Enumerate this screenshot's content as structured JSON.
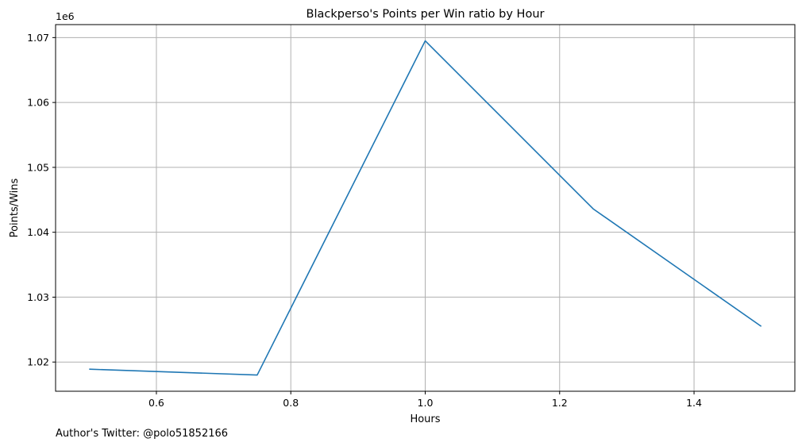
{
  "chart_data": {
    "type": "line",
    "title": "Blackperso's Points per Win ratio by Hour",
    "xlabel": "Hours",
    "ylabel": "Points/Wins",
    "y_offset_label": "1e6",
    "y_scale_factor": 1000000,
    "xlim": [
      0.45,
      1.55
    ],
    "ylim": [
      1.0155,
      1.072
    ],
    "x_ticks": [
      0.6,
      0.8,
      1.0,
      1.2,
      1.4
    ],
    "x_tick_labels": [
      "0.6",
      "0.8",
      "1.0",
      "1.2",
      "1.4"
    ],
    "y_ticks": [
      1.02,
      1.03,
      1.04,
      1.05,
      1.06,
      1.07
    ],
    "y_tick_labels": [
      "1.02",
      "1.03",
      "1.04",
      "1.05",
      "1.06",
      "1.07"
    ],
    "grid": true,
    "series": [
      {
        "color": "#1f77b4",
        "x": [
          0.5,
          0.75,
          1.0,
          1.25,
          1.5
        ],
        "y": [
          1.0189,
          1.018,
          1.0695,
          1.0436,
          1.0255
        ]
      }
    ]
  },
  "footer": {
    "text": "Author's Twitter: @polo51852166"
  },
  "colors": {
    "grid": "#b0b0b0",
    "axes": "#000000",
    "line": "#1f77b4"
  }
}
